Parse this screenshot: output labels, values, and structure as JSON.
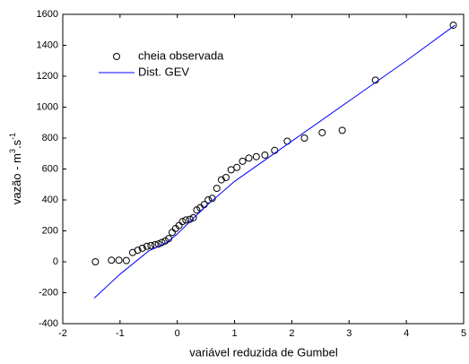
{
  "chart_data": {
    "type": "scatter+line",
    "xlabel": "variável reduzida de Gumbel",
    "ylabel": [
      "vazão - m",
      "3",
      ".s",
      "-1"
    ],
    "xlim": [
      -2,
      5
    ],
    "xticks": [
      -2,
      -1,
      0,
      1,
      2,
      3,
      4,
      5
    ],
    "ylim": [
      -400,
      1600
    ],
    "yticks": [
      -400,
      -200,
      0,
      200,
      400,
      600,
      800,
      1000,
      1200,
      1400,
      1600
    ],
    "legend": "upper left",
    "series": [
      {
        "name": "cheia observada",
        "kind": "scatter",
        "color": "#000000",
        "x": [
          -1.43,
          -1.15,
          -1.02,
          -0.89,
          -0.78,
          -0.69,
          -0.61,
          -0.53,
          -0.46,
          -0.39,
          -0.33,
          -0.27,
          -0.21,
          -0.15,
          -0.09,
          -0.03,
          0.03,
          0.09,
          0.15,
          0.22,
          0.28,
          0.34,
          0.4,
          0.47,
          0.54,
          0.61,
          0.69,
          0.77,
          0.85,
          0.94,
          1.04,
          1.14,
          1.25,
          1.38,
          1.53,
          1.7,
          1.92,
          2.22,
          2.53,
          2.88,
          3.46,
          4.82
        ],
        "values": [
          0,
          10,
          10,
          8,
          60,
          75,
          88,
          100,
          105,
          110,
          115,
          125,
          135,
          150,
          190,
          215,
          235,
          260,
          270,
          275,
          285,
          335,
          350,
          370,
          400,
          410,
          475,
          530,
          545,
          595,
          610,
          650,
          670,
          680,
          690,
          720,
          780,
          800,
          835,
          850,
          1175,
          1530
        ]
      },
      {
        "name": "Dist. GEV",
        "kind": "line",
        "color": "#0000ff",
        "x": [
          -1.45,
          -1.0,
          -0.5,
          -0.2,
          0,
          0.5,
          1,
          2,
          3,
          4,
          4.85
        ],
        "values": [
          -235,
          -80,
          70,
          120,
          180,
          360,
          520,
          780,
          1040,
          1300,
          1530
        ]
      }
    ]
  }
}
